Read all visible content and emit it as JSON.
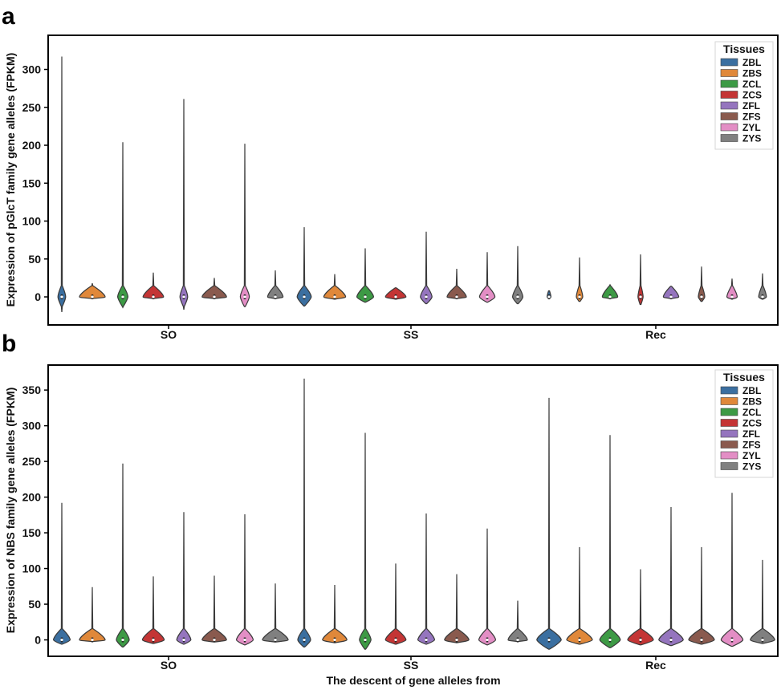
{
  "colors": {
    "ZBL": "#3b6fa0",
    "ZBS": "#e0883a",
    "ZCL": "#3d9a45",
    "ZCS": "#c43535",
    "ZFL": "#9575be",
    "ZFS": "#8a5a4e",
    "ZYL": "#e38ec5",
    "ZYS": "#808080"
  },
  "chart_data": [
    {
      "panel": "a",
      "type": "violin",
      "ylabel": "Expression of pGlcT family gene alleles (FPKM)",
      "xlabel": "",
      "ylim": [
        -37,
        345
      ],
      "yticks": [
        0,
        50,
        100,
        150,
        200,
        250,
        300
      ],
      "categories": [
        "SO",
        "SS",
        "Rec"
      ],
      "legend_title": "Tissues",
      "legend_position": "top-right",
      "series": [
        {
          "name": "ZBL",
          "min": [
            -20,
            -12,
            -1
          ],
          "max": [
            317,
            92,
            8
          ],
          "width": [
            0.3,
            0.55,
            0.15
          ]
        },
        {
          "name": "ZBS",
          "min": [
            -1,
            -3,
            -6
          ],
          "max": [
            18,
            30,
            52
          ],
          "width": [
            1.0,
            0.85,
            0.25
          ]
        },
        {
          "name": "ZCL",
          "min": [
            -14,
            -7,
            -1
          ],
          "max": [
            204,
            64,
            16
          ],
          "width": [
            0.4,
            0.65,
            0.6
          ]
        },
        {
          "name": "ZCS",
          "min": [
            -1,
            -3,
            -10
          ],
          "max": [
            32,
            12,
            56
          ],
          "width": [
            0.8,
            0.8,
            0.2
          ]
        },
        {
          "name": "ZFL",
          "min": [
            -17,
            -9,
            -1
          ],
          "max": [
            261,
            86,
            14
          ],
          "width": [
            0.3,
            0.45,
            0.6
          ]
        },
        {
          "name": "ZFS",
          "min": [
            -1,
            -2,
            -6
          ],
          "max": [
            25,
            37,
            40
          ],
          "width": [
            0.95,
            0.75,
            0.25
          ]
        },
        {
          "name": "ZYL",
          "min": [
            -13,
            -7,
            -3
          ],
          "max": [
            202,
            59,
            24
          ],
          "width": [
            0.35,
            0.6,
            0.4
          ]
        },
        {
          "name": "ZYS",
          "min": [
            -2,
            -9,
            -3
          ],
          "max": [
            35,
            67,
            31
          ],
          "width": [
            0.6,
            0.4,
            0.3
          ]
        }
      ]
    },
    {
      "panel": "b",
      "type": "violin",
      "ylabel": "Expression of NBS family gene alleles (FPKM)",
      "xlabel": "The descent of gene alleles from",
      "ylim": [
        -23,
        385
      ],
      "yticks": [
        0,
        50,
        100,
        150,
        200,
        250,
        300,
        350
      ],
      "categories": [
        "SO",
        "SS",
        "Rec"
      ],
      "legend_title": "Tissues",
      "legend_position": "top-right",
      "series": [
        {
          "name": "ZBL",
          "min": [
            -6,
            -10,
            -13
          ],
          "max": [
            192,
            366,
            339
          ],
          "width": [
            0.65,
            0.5,
            0.95
          ]
        },
        {
          "name": "ZBS",
          "min": [
            -2,
            -4,
            -6
          ],
          "max": [
            74,
            77,
            130
          ],
          "width": [
            1.0,
            0.95,
            1.0
          ]
        },
        {
          "name": "ZCL",
          "min": [
            -10,
            -13,
            -11
          ],
          "max": [
            247,
            290,
            287
          ],
          "width": [
            0.5,
            0.45,
            0.8
          ]
        },
        {
          "name": "ZCS",
          "min": [
            -5,
            -6,
            -7
          ],
          "max": [
            89,
            107,
            99
          ],
          "width": [
            0.85,
            0.8,
            1.0
          ]
        },
        {
          "name": "ZFL",
          "min": [
            -6,
            -6,
            -8
          ],
          "max": [
            179,
            177,
            186
          ],
          "width": [
            0.55,
            0.65,
            0.95
          ]
        },
        {
          "name": "ZFS",
          "min": [
            -3,
            -4,
            -6
          ],
          "max": [
            90,
            92,
            130
          ],
          "width": [
            0.95,
            0.95,
            1.0
          ]
        },
        {
          "name": "ZYL",
          "min": [
            -7,
            -7,
            -9
          ],
          "max": [
            176,
            156,
            206
          ],
          "width": [
            0.65,
            0.65,
            0.85
          ]
        },
        {
          "name": "ZYS",
          "min": [
            -3,
            -2,
            -5
          ],
          "max": [
            79,
            55,
            112
          ],
          "width": [
            1.0,
            0.75,
            0.95
          ]
        }
      ]
    }
  ]
}
